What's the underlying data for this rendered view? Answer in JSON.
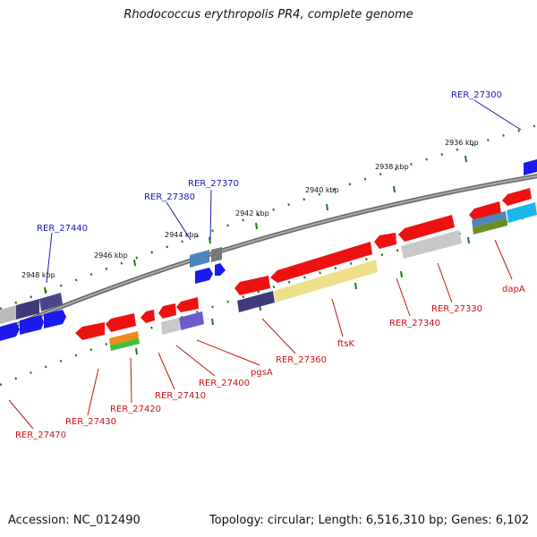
{
  "title": "Rhodococcus erythropolis PR4, complete genome",
  "footer": {
    "accession": "Accession: NC_012490",
    "summary": "Topology: circular; Length: 6,516,310 bp; Genes: 6,102"
  },
  "colors": {
    "backbone": "#808080",
    "tick": "#1f7a1f",
    "label_blue": "#1a1ab8",
    "label_red": "#cc1111",
    "gene_red": "#ee1111",
    "gene_blue": "#1a1aee"
  },
  "kbp_ticks": [
    "2948 kbp",
    "2946 kbp",
    "2944 kbp",
    "2942 kbp",
    "2940 kbp",
    "2938 kbp",
    "2936 kbp"
  ],
  "upper_labels": [
    "RER_27440",
    "RER_27380",
    "RER_27370",
    "RER_27300"
  ],
  "lower_labels": [
    "RER_27470",
    "RER_27430",
    "RER_27420",
    "RER_27410",
    "RER_27400",
    "pgsA",
    "RER_27360",
    "ftsK",
    "RER_27340",
    "RER_27330",
    "dapA"
  ]
}
